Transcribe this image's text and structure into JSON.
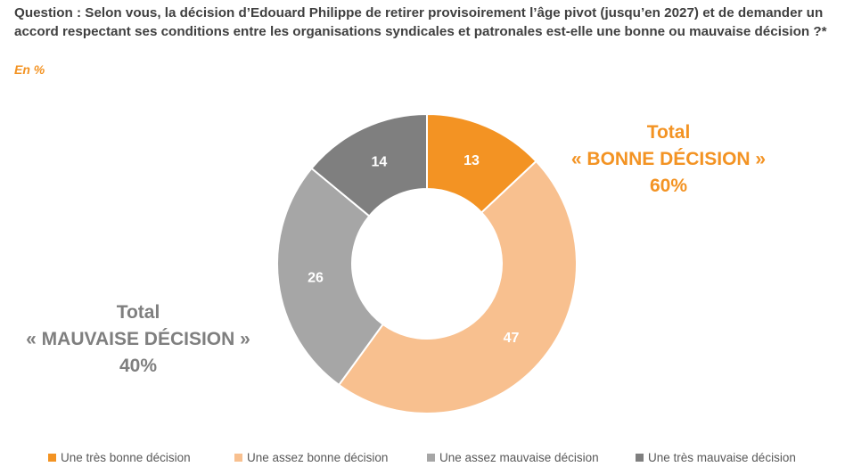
{
  "header": {
    "question": "Question : Selon vous, la décision d’Edouard Philippe de retirer provisoirement l’âge pivot (jusqu’en 2027) et de demander un accord respectant ses conditions entre les organisations syndicales et patronales est-elle une bonne ou mauvaise décision ?*",
    "unit": "En %"
  },
  "totals": {
    "good": {
      "line1": "Total",
      "line2": "« BONNE DÉCISION »",
      "line3": "60%"
    },
    "bad": {
      "line1": "Total",
      "line2": "« MAUVAISE DÉCISION »",
      "line3": "40%"
    }
  },
  "chart_data": {
    "type": "pie",
    "donut": true,
    "categories": [
      "Une très bonne décision",
      "Une assez bonne décision",
      "Une assez mauvaise décision",
      "Une très mauvaise décision"
    ],
    "values": [
      13,
      47,
      26,
      14
    ],
    "labels": [
      "13",
      "47",
      "26",
      "14"
    ],
    "colors": [
      "#F39323",
      "#F8C08F",
      "#A6A6A6",
      "#7F7F7F"
    ],
    "label_colors": [
      "#ffffff",
      "#ffffff",
      "#ffffff",
      "#ffffff"
    ],
    "legend_position": "bottom",
    "start": "top, clockwise"
  }
}
